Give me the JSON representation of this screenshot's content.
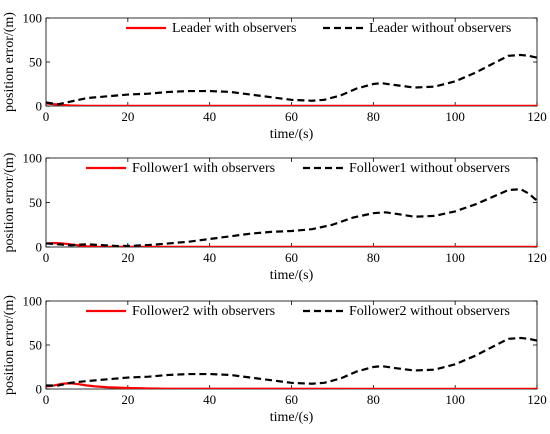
{
  "chart_data": [
    {
      "type": "line",
      "xlabel": "time/(s)",
      "ylabel": "position error/(m)",
      "xlim": [
        0,
        120
      ],
      "ylim": [
        0,
        100
      ],
      "xticks": [
        0,
        20,
        40,
        60,
        80,
        100,
        120
      ],
      "yticks": [
        0,
        50,
        100
      ],
      "legend_position": "top",
      "series": [
        {
          "name": "Leader with observers",
          "color": "#ff0000",
          "style": "solid",
          "x": [
            0,
            2,
            4,
            6,
            8,
            10,
            120
          ],
          "y": [
            3,
            2,
            1.2,
            0.6,
            0.3,
            0.1,
            0.1
          ]
        },
        {
          "name": "Leader without observers",
          "color": "#000000",
          "style": "dashed",
          "x": [
            0,
            3,
            6,
            10,
            15,
            20,
            25,
            30,
            35,
            40,
            45,
            50,
            55,
            60,
            65,
            68,
            72,
            76,
            80,
            82,
            85,
            90,
            95,
            100,
            105,
            110,
            113,
            116,
            118,
            120
          ],
          "y": [
            4,
            2,
            5,
            9,
            11,
            13,
            14,
            16,
            17,
            17,
            16,
            13,
            10,
            7,
            6,
            7,
            12,
            20,
            25,
            26,
            24,
            21,
            22,
            28,
            38,
            50,
            57,
            58,
            57,
            55
          ]
        }
      ]
    },
    {
      "type": "line",
      "xlabel": "time/(s)",
      "ylabel": "position error/(m)",
      "xlim": [
        0,
        120
      ],
      "ylim": [
        0,
        100
      ],
      "xticks": [
        0,
        20,
        40,
        60,
        80,
        100,
        120
      ],
      "yticks": [
        0,
        50,
        100
      ],
      "legend_position": "top",
      "series": [
        {
          "name": "Follower1 with observers",
          "color": "#ff0000",
          "style": "solid",
          "x": [
            0,
            2,
            4,
            6,
            8,
            10,
            12,
            120
          ],
          "y": [
            4,
            4.5,
            4,
            3,
            1.8,
            0.8,
            0.2,
            0.1
          ]
        },
        {
          "name": "Follower1 without observers",
          "color": "#000000",
          "style": "dashed",
          "x": [
            0,
            3,
            6,
            10,
            14,
            18,
            22,
            26,
            30,
            35,
            40,
            45,
            50,
            55,
            60,
            65,
            70,
            75,
            80,
            83,
            86,
            90,
            95,
            100,
            105,
            110,
            113,
            116,
            118,
            120
          ],
          "y": [
            4,
            3,
            2,
            3,
            2,
            1,
            1.5,
            2.5,
            4,
            6,
            9,
            12,
            15,
            17,
            18,
            20,
            25,
            33,
            38,
            39,
            37,
            34,
            35,
            40,
            48,
            58,
            64,
            65,
            60,
            52
          ]
        }
      ]
    },
    {
      "type": "line",
      "xlabel": "time/(s)",
      "ylabel": "position error/(m)",
      "xlim": [
        0,
        120
      ],
      "ylim": [
        0,
        100
      ],
      "xticks": [
        0,
        20,
        40,
        60,
        80,
        100,
        120
      ],
      "yticks": [
        0,
        50,
        100
      ],
      "legend_position": "top",
      "series": [
        {
          "name": "Follower2 with observers",
          "color": "#ff0000",
          "style": "solid",
          "x": [
            0,
            2,
            4,
            6,
            8,
            10,
            12,
            15,
            20,
            25,
            30,
            120
          ],
          "y": [
            3,
            4,
            6,
            6.5,
            5.5,
            4,
            3,
            2,
            1.2,
            0.6,
            0.3,
            0.1
          ]
        },
        {
          "name": "Follower2 without observers",
          "color": "#000000",
          "style": "dashed",
          "x": [
            0,
            3,
            6,
            10,
            15,
            20,
            25,
            30,
            35,
            40,
            45,
            50,
            55,
            60,
            65,
            68,
            72,
            76,
            80,
            82,
            85,
            90,
            95,
            100,
            105,
            110,
            113,
            116,
            118,
            120
          ],
          "y": [
            4,
            4,
            7,
            9,
            11,
            13,
            14,
            16,
            17,
            17,
            16,
            13,
            10,
            7,
            6,
            7,
            12,
            20,
            25,
            26,
            24,
            21,
            22,
            28,
            38,
            50,
            57,
            58,
            57,
            55
          ]
        }
      ]
    }
  ]
}
